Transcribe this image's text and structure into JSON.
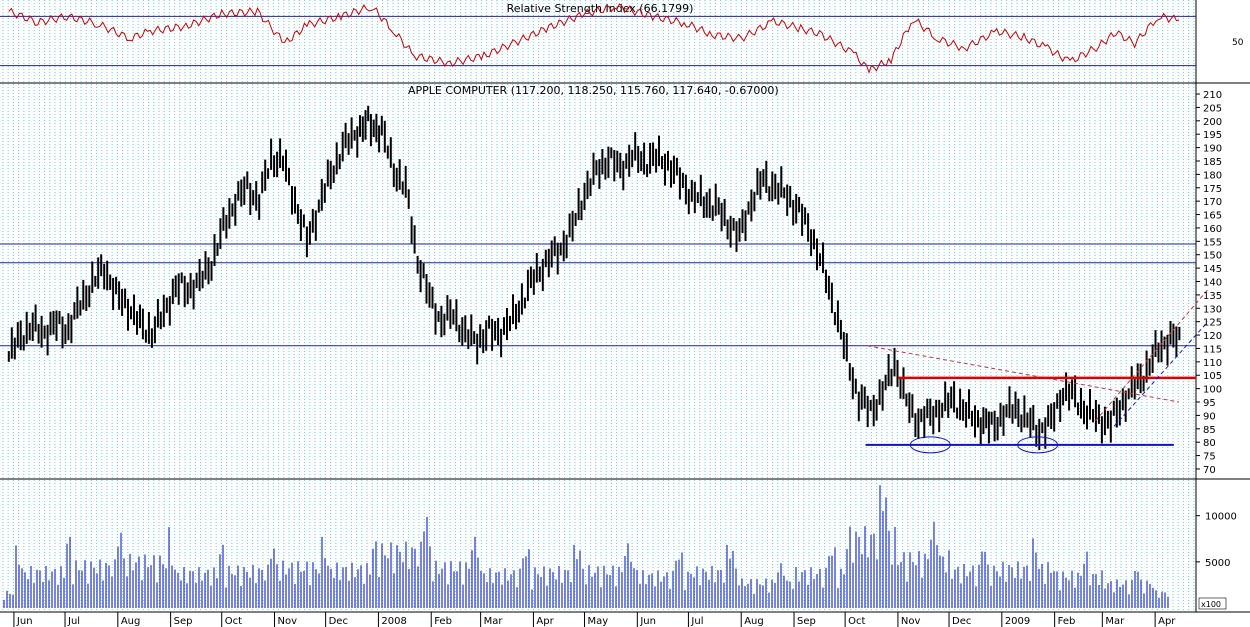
{
  "colors": {
    "grid": "#66CCFF",
    "price": "#000000",
    "rsi": "#CC0000",
    "volume": "#2233CC",
    "hline": "#2222AA",
    "resistance": "#DD0000",
    "trend_dashed": "#CC3333",
    "support": "#1111CC"
  },
  "chart_data": [
    {
      "type": "line",
      "title": "Relative Strength Index (66.1799)",
      "ytick_labels": [
        "50"
      ],
      "yticks": [
        50
      ],
      "ylim": [
        20,
        80
      ],
      "reference_levels": [
        70,
        30
      ],
      "series": [
        {
          "x": [
            "2007-05-29",
            "2007-06-15",
            "2007-07-02",
            "2007-07-20",
            "2007-08-08",
            "2007-08-20",
            "2007-09-10",
            "2007-10-01",
            "2007-10-22",
            "2007-11-07",
            "2007-11-20",
            "2007-12-10",
            "2007-12-28",
            "2008-01-10",
            "2008-01-22",
            "2008-02-12",
            "2008-03-03",
            "2008-03-20",
            "2008-04-10",
            "2008-05-01",
            "2008-05-20",
            "2008-06-10",
            "2008-06-30",
            "2008-07-15",
            "2008-08-01",
            "2008-08-20",
            "2008-09-05",
            "2008-09-16",
            "2008-10-06",
            "2008-10-15",
            "2008-10-28",
            "2008-11-10",
            "2008-11-24",
            "2008-12-10",
            "2008-12-29",
            "2009-01-14",
            "2009-01-28",
            "2009-02-10",
            "2009-02-27",
            "2009-03-09",
            "2009-03-20",
            "2009-04-03",
            "2009-04-15"
          ],
          "values": [
            74,
            65,
            70,
            64,
            52,
            58,
            62,
            72,
            74,
            48,
            63,
            70,
            78,
            58,
            38,
            32,
            38,
            48,
            61,
            72,
            78,
            70,
            64,
            55,
            52,
            66,
            60,
            56,
            40,
            26,
            35,
            68,
            52,
            44,
            58,
            53,
            44,
            33,
            46,
            57,
            48,
            70,
            67
          ]
        }
      ]
    },
    {
      "type": "line",
      "title": "APPLE COMPUTER (117.200, 118.250, 115.760, 117.640, -0.67000)",
      "x_tick_labels": [
        "Jun",
        "Jul",
        "Aug",
        "Sep",
        "Oct",
        "Nov",
        "Dec",
        "2008",
        "Feb",
        "Mar",
        "Apr",
        "May",
        "Jun",
        "Jul",
        "Aug",
        "Sep",
        "Oct",
        "Nov",
        "Dec",
        "2009",
        "Feb",
        "Mar",
        "Apr"
      ],
      "ytick_labels": [
        "70",
        "75",
        "80",
        "85",
        "90",
        "95",
        "100",
        "105",
        "110",
        "115",
        "120",
        "125",
        "130",
        "135",
        "140",
        "145",
        "150",
        "155",
        "160",
        "165",
        "170",
        "175",
        "180",
        "185",
        "190",
        "195",
        "200",
        "205",
        "210"
      ],
      "ylim": [
        67,
        213
      ],
      "annotations": {
        "horizontal_lines": [
          154,
          147,
          116
        ],
        "resistance_line": 104,
        "support_line": 79,
        "descending_trendline": [
          [
            "2008-10-14",
            116
          ],
          [
            "2009-04-15",
            95
          ]
        ]
      },
      "series": [
        {
          "x": [
            "2007-05-29",
            "2007-06-05",
            "2007-06-12",
            "2007-06-19",
            "2007-06-26",
            "2007-07-03",
            "2007-07-10",
            "2007-07-17",
            "2007-07-24",
            "2007-07-31",
            "2007-08-07",
            "2007-08-14",
            "2007-08-21",
            "2007-08-28",
            "2007-09-04",
            "2007-09-11",
            "2007-09-18",
            "2007-09-25",
            "2007-10-02",
            "2007-10-09",
            "2007-10-16",
            "2007-10-23",
            "2007-10-30",
            "2007-11-06",
            "2007-11-13",
            "2007-11-20",
            "2007-11-27",
            "2007-12-04",
            "2007-12-11",
            "2007-12-18",
            "2007-12-26",
            "2008-01-03",
            "2008-01-10",
            "2008-01-17",
            "2008-01-24",
            "2008-01-31",
            "2008-02-07",
            "2008-02-14",
            "2008-02-21",
            "2008-02-28",
            "2008-03-06",
            "2008-03-13",
            "2008-03-20",
            "2008-03-27",
            "2008-04-03",
            "2008-04-10",
            "2008-04-17",
            "2008-04-24",
            "2008-05-01",
            "2008-05-08",
            "2008-05-15",
            "2008-05-22",
            "2008-05-29",
            "2008-06-05",
            "2008-06-12",
            "2008-06-19",
            "2008-06-26",
            "2008-07-03",
            "2008-07-10",
            "2008-07-17",
            "2008-07-24",
            "2008-07-31",
            "2008-08-07",
            "2008-08-14",
            "2008-08-21",
            "2008-08-28",
            "2008-09-04",
            "2008-09-11",
            "2008-09-18",
            "2008-09-25",
            "2008-10-02",
            "2008-10-09",
            "2008-10-16",
            "2008-10-23",
            "2008-10-30",
            "2008-11-06",
            "2008-11-13",
            "2008-11-20",
            "2008-11-27",
            "2008-12-04",
            "2008-12-11",
            "2008-12-18",
            "2008-12-26",
            "2009-01-02",
            "2009-01-09",
            "2009-01-16",
            "2009-01-23",
            "2009-01-30",
            "2009-02-06",
            "2009-02-13",
            "2009-02-20",
            "2009-02-27",
            "2009-03-06",
            "2009-03-13",
            "2009-03-20",
            "2009-03-27",
            "2009-04-03",
            "2009-04-10",
            "2009-04-17"
          ],
          "values": [
            112,
            120,
            123,
            121,
            124,
            122,
            132,
            139,
            145,
            135,
            131,
            124,
            121,
            128,
            138,
            137,
            140,
            147,
            160,
            170,
            175,
            170,
            186,
            185,
            170,
            155,
            168,
            180,
            190,
            195,
            199,
            196,
            182,
            175,
            148,
            134,
            125,
            128,
            120,
            118,
            121,
            121,
            126,
            135,
            143,
            148,
            152,
            160,
            173,
            181,
            186,
            182,
            187,
            185,
            186,
            184,
            178,
            172,
            170,
            168,
            162,
            157,
            170,
            178,
            175,
            172,
            166,
            158,
            145,
            130,
            112,
            96,
            92,
            98,
            110,
            95,
            88,
            90,
            93,
            96,
            91,
            88,
            86,
            90,
            93,
            88,
            84,
            88,
            99,
            97,
            91,
            89,
            87,
            95,
            101,
            107,
            115,
            119,
            117
          ]
        }
      ]
    },
    {
      "type": "bar",
      "title": "",
      "ytick_labels": [
        "10000",
        "5000"
      ],
      "yticks": [
        10000,
        5000
      ],
      "ylim": [
        0,
        13000
      ],
      "unit_label": "x100",
      "series": [
        {
          "x": [
            "2007-06",
            "2007-07",
            "2007-08",
            "2007-09",
            "2007-10",
            "2007-11",
            "2007-12",
            "2008-01",
            "2008-02",
            "2008-03",
            "2008-04",
            "2008-05",
            "2008-06",
            "2008-07",
            "2008-08",
            "2008-09",
            "2008-10",
            "2008-11",
            "2008-12",
            "2009-01",
            "2009-02",
            "2009-03",
            "2009-04"
          ],
          "values": [
            3800,
            4400,
            4900,
            3700,
            3900,
            4300,
            4100,
            6000,
            4300,
            3600,
            3800,
            3900,
            3400,
            3800,
            2700,
            3700,
            7400,
            5200,
            4000,
            4200,
            3400,
            2600,
            1600
          ]
        }
      ]
    }
  ]
}
